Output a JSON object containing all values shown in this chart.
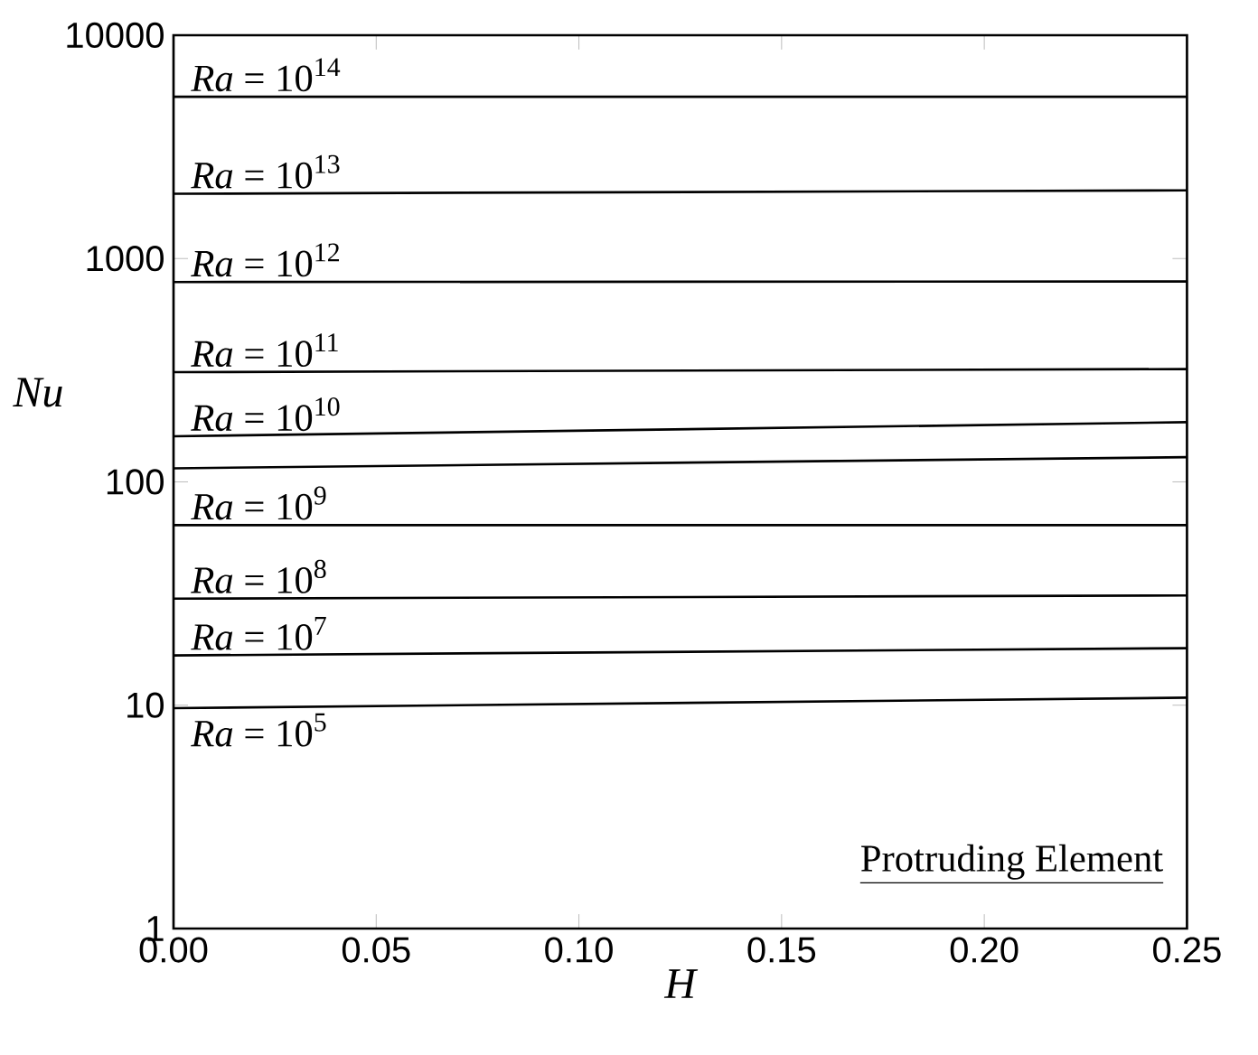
{
  "chart_data": {
    "type": "line",
    "xlabel": "H",
    "ylabel": "Nu",
    "log": "y",
    "x": [
      0,
      0.25
    ],
    "xlim": [
      0,
      0.25
    ],
    "ylim": [
      1,
      10000
    ],
    "xticks": [
      {
        "value": 0,
        "label": "0.00"
      },
      {
        "value": 0.05,
        "label": "0.05"
      },
      {
        "value": 0.1,
        "label": "0.10"
      },
      {
        "value": 0.15,
        "label": "0.15"
      },
      {
        "value": 0.2,
        "label": "0.20"
      },
      {
        "value": 0.25,
        "label": "0.25"
      }
    ],
    "yticks": [
      1,
      10,
      100,
      1000,
      10000
    ],
    "series": [
      {
        "name": "*Ra* = 10$^{14}$",
        "color": "#000000",
        "values": [
          5300,
          5300
        ]
      },
      {
        "name": "*Ra* = 10$^{13}$",
        "color": "#000000",
        "values": [
          1950,
          2020
        ]
      },
      {
        "name": "*Ra* = 10$^{12}$",
        "color": "#000000",
        "values": [
          785,
          790
        ]
      },
      {
        "name": "*Ra* = 10$^{11}$",
        "color": "#000000",
        "values": [
          310,
          320
        ]
      },
      {
        "name": "*Ra* = 10$^{10}$",
        "color": "#000000",
        "values": [
          160,
          185
        ]
      },
      {
        "color": "#000000",
        "values": [
          115,
          129
        ]
      },
      {
        "name": "*Ra* = 10$^{9}$",
        "color": "#000000",
        "values": [
          64,
          64
        ]
      },
      {
        "name": "*Ra* = 10$^{8}$",
        "color": "#000000",
        "values": [
          30,
          31
        ]
      },
      {
        "name": "*Ra* = 10$^{7}$",
        "color": "#000000",
        "values": [
          16.7,
          18
        ]
      },
      {
        "name": "*Ra* = 10$^{5}$",
        "color": "#000000",
        "values": [
          9.7,
          10.8
        ]
      }
    ],
    "annotations": [
      "Protruding Element"
    ]
  }
}
